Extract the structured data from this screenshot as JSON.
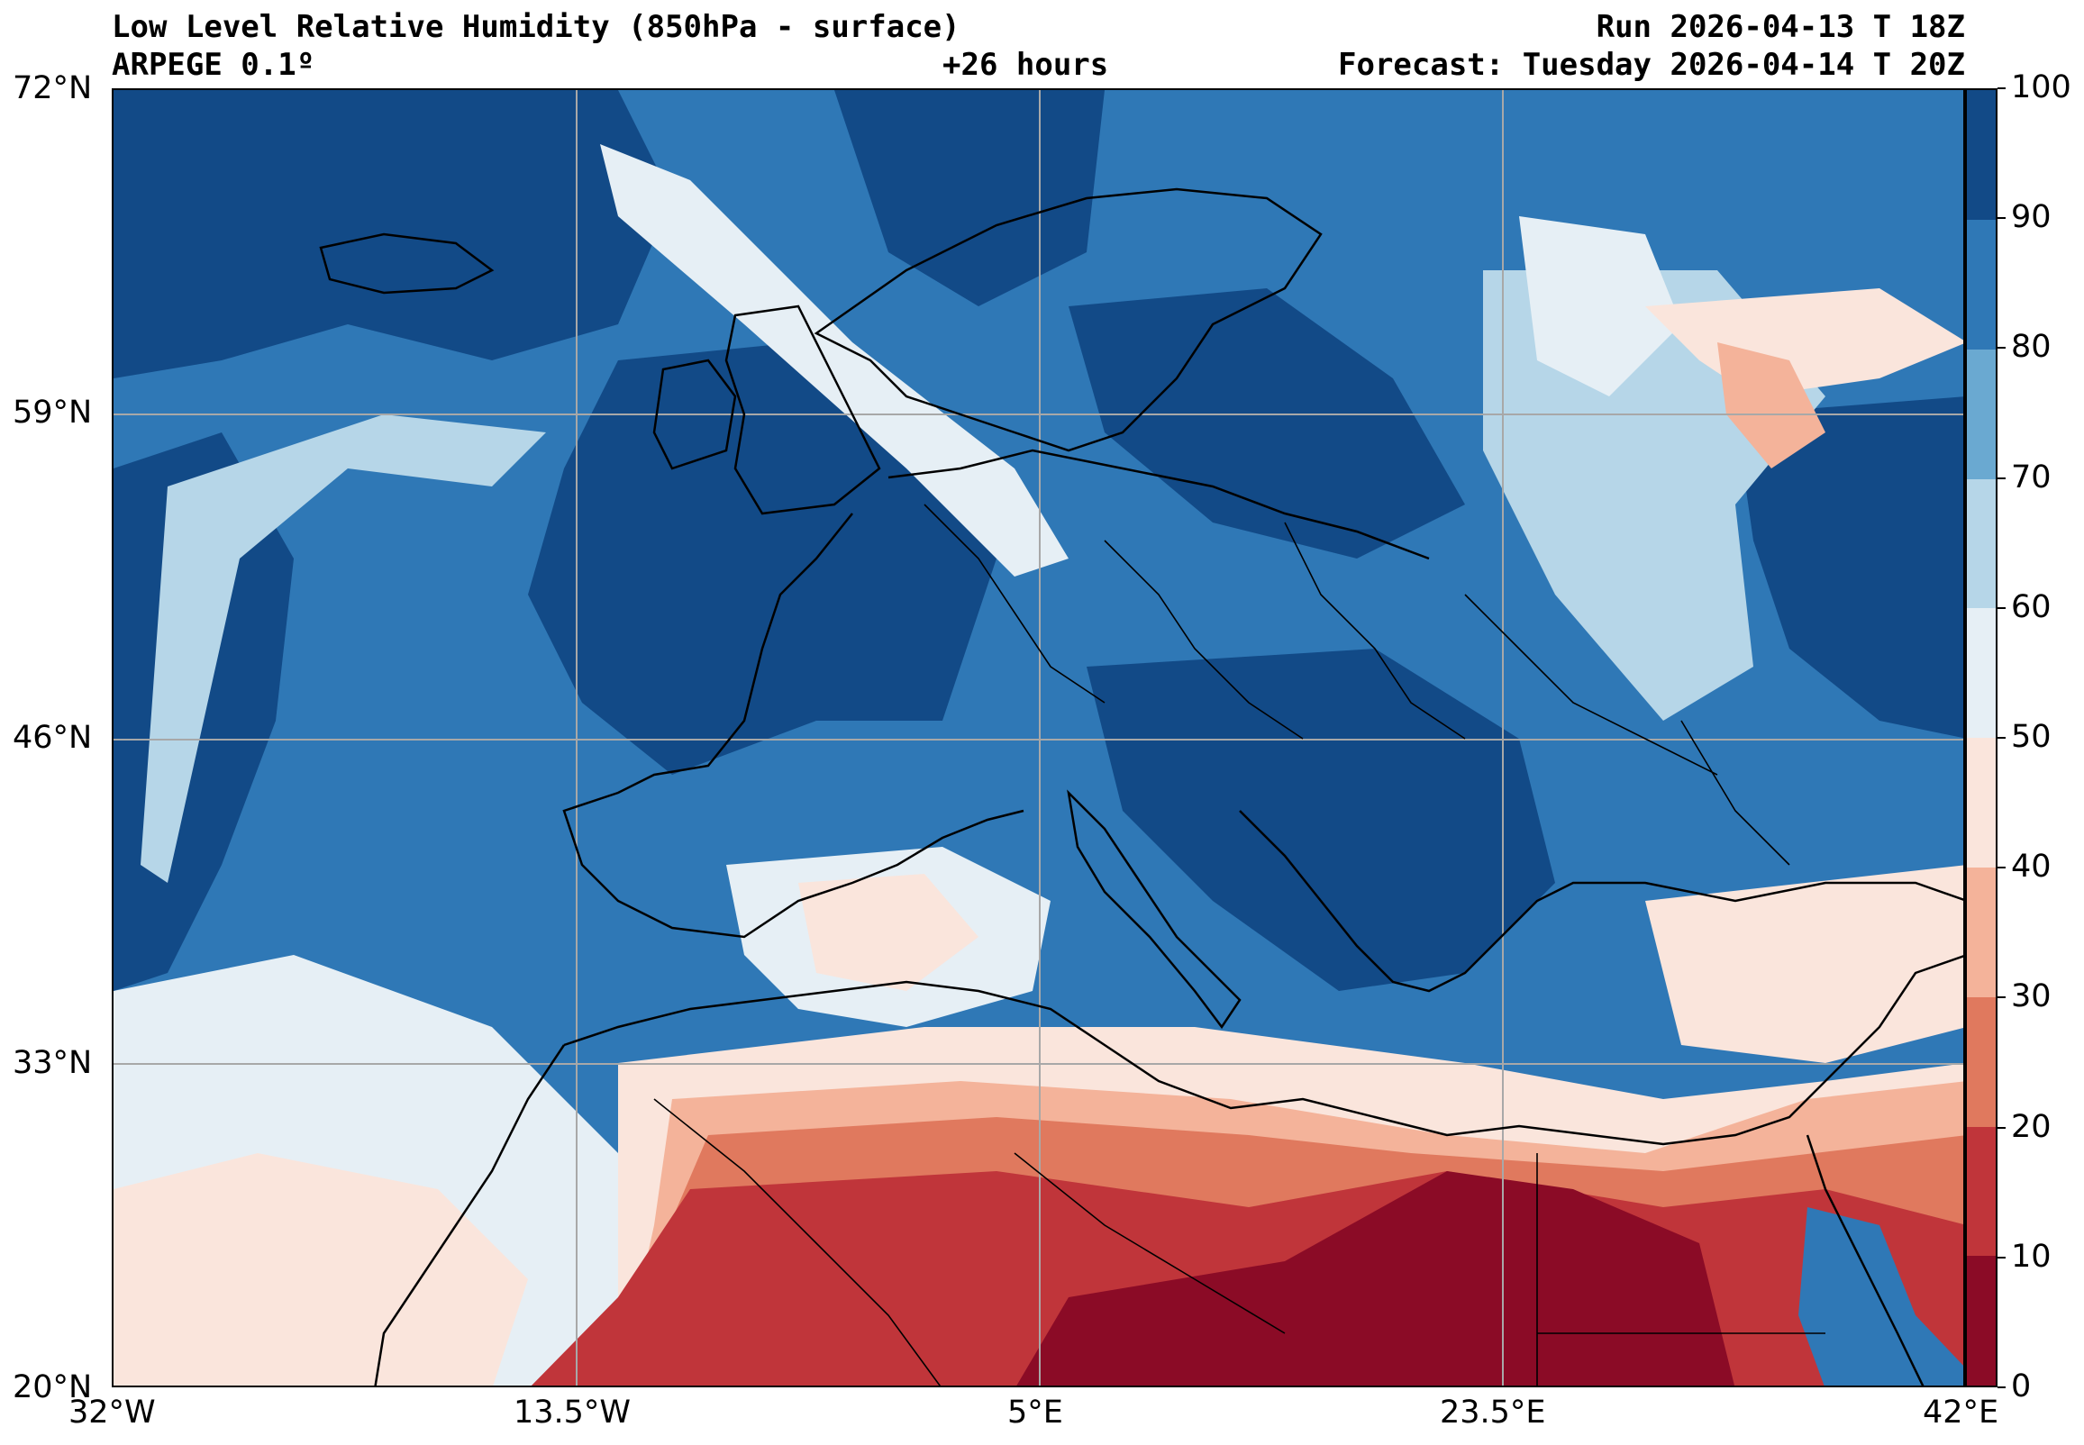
{
  "header": {
    "title": "Low Level Relative Humidity (850hPa - surface)",
    "model": "ARPEGE 0.1º",
    "lead": "+26 hours",
    "run": "Run 2026-04-13 T 18Z",
    "forecast": "Forecast: Tuesday 2026-04-14 T 20Z"
  },
  "map": {
    "lon_range": [
      -32,
      42
    ],
    "lat_range": [
      20,
      72
    ],
    "lon_ticks": [
      {
        "value": -32,
        "label": "32°W"
      },
      {
        "value": -13.5,
        "label": "13.5°W"
      },
      {
        "value": 5,
        "label": "5°E"
      },
      {
        "value": 23.5,
        "label": "23.5°E"
      },
      {
        "value": 42,
        "label": "42°E"
      }
    ],
    "lat_ticks": [
      {
        "value": 72,
        "label": "72°N"
      },
      {
        "value": 59,
        "label": "59°N"
      },
      {
        "value": 46,
        "label": "46°N"
      },
      {
        "value": 33,
        "label": "33°N"
      },
      {
        "value": 20,
        "label": "20°N"
      }
    ],
    "gridlines": true
  },
  "colorbar": {
    "levels": [
      {
        "min": 0,
        "max": 10,
        "color": "#8b0b26"
      },
      {
        "min": 10,
        "max": 20,
        "color": "#c0353a"
      },
      {
        "min": 20,
        "max": 30,
        "color": "#e0795e"
      },
      {
        "min": 30,
        "max": 40,
        "color": "#f4b39a"
      },
      {
        "min": 40,
        "max": 50,
        "color": "#fae5dc"
      },
      {
        "min": 50,
        "max": 60,
        "color": "#e6eff5"
      },
      {
        "min": 60,
        "max": 70,
        "color": "#b6d6e8"
      },
      {
        "min": 70,
        "max": 80,
        "color": "#6aa9d1"
      },
      {
        "min": 80,
        "max": 90,
        "color": "#2f78b6"
      },
      {
        "min": 90,
        "max": 100,
        "color": "#124a87"
      }
    ],
    "tick_labels": [
      "0",
      "10",
      "20",
      "30",
      "40",
      "50",
      "60",
      "70",
      "80",
      "90",
      "100"
    ]
  }
}
